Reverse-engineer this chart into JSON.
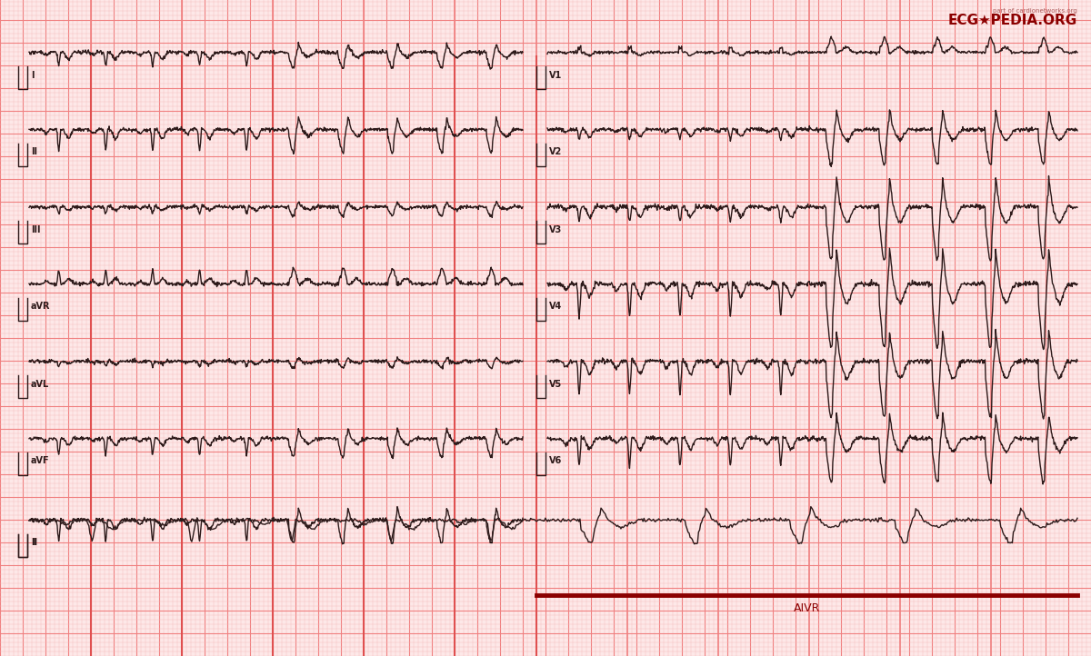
{
  "bg_color": "#fde8e8",
  "grid_minor_color": "#f4b8b8",
  "grid_major_color": "#f08080",
  "ekg_color": "#2d1a1a",
  "annotation_color": "#8b0000",
  "title": "AIVR",
  "ecgpedia_text": "ECG★PEDIA.ORG",
  "lead_labels": [
    "I",
    "II",
    "III",
    "aVR",
    "aVL",
    "aVF",
    "II"
  ],
  "v_lead_labels": [
    "V1",
    "V2",
    "V3",
    "V4",
    "V5",
    "V6"
  ],
  "figsize": [
    12.0,
    7.22
  ],
  "dpi": 100
}
